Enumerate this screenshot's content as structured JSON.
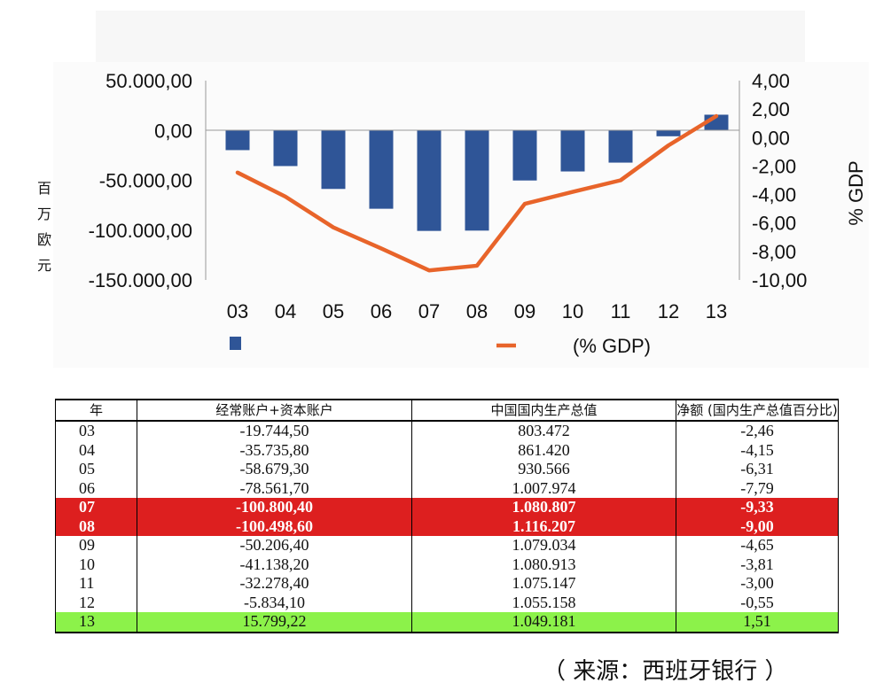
{
  "chart_data": {
    "type": "bar",
    "categories": [
      "03",
      "04",
      "05",
      "06",
      "07",
      "08",
      "09",
      "10",
      "11",
      "12",
      "13"
    ],
    "series": [
      {
        "axis": "left",
        "type": "bar",
        "values": [
          -19744.5,
          -35735.8,
          -58679.3,
          -78561.7,
          -100800.4,
          -100498.6,
          -50206.4,
          -41138.2,
          -32278.4,
          -5834.1,
          15799.22
        ],
        "color": "#2f5597"
      },
      {
        "axis": "right",
        "type": "line",
        "name": "(% GDP)",
        "values": [
          -2.46,
          -4.15,
          -6.31,
          -7.79,
          -9.33,
          -9.0,
          -4.65,
          -3.81,
          -3.0,
          -0.55,
          1.51
        ],
        "color": "#e8642a"
      }
    ],
    "y_left": {
      "label": [
        "百",
        "万",
        "欧",
        "元"
      ],
      "ylim": [
        -150000,
        50000
      ],
      "ticks": [
        50000,
        0,
        -50000,
        -100000,
        -150000
      ],
      "tick_labels": [
        "50.000,00",
        "0,00",
        "-50.000,00",
        "-100.000,00",
        "-150.000,00"
      ]
    },
    "y_right": {
      "label": "% GDP",
      "ylim": [
        -10,
        4
      ],
      "ticks": [
        4,
        2,
        0,
        -2,
        -4,
        -6,
        -8,
        -10
      ],
      "tick_labels": [
        "4,00",
        "2,00",
        "0,00",
        "-2,00",
        "-4,00",
        "-6,00",
        "-8,00",
        "-10,00"
      ]
    },
    "legend": {
      "placement": "bottom",
      "line_label": "(% GDP)"
    },
    "grid": false
  },
  "table": {
    "headers": [
      "年",
      "经常账户+资本账户",
      "中国国内生产总值",
      "净额 (国内生产总值百分比)"
    ],
    "rows": [
      {
        "cells": [
          "03",
          "-19.744,50",
          "803.472",
          "-2,46"
        ],
        "highlight": ""
      },
      {
        "cells": [
          "04",
          "-35.735,80",
          "861.420",
          "-4,15"
        ],
        "highlight": ""
      },
      {
        "cells": [
          "05",
          "-58.679,30",
          "930.566",
          "-6,31"
        ],
        "highlight": ""
      },
      {
        "cells": [
          "06",
          "-78.561,70",
          "1.007.974",
          "-7,79"
        ],
        "highlight": ""
      },
      {
        "cells": [
          "07",
          "-100.800,40",
          "1.080.807",
          "-9,33"
        ],
        "highlight": "red"
      },
      {
        "cells": [
          "08",
          "-100.498,60",
          "1.116.207",
          "-9,00"
        ],
        "highlight": "red"
      },
      {
        "cells": [
          "09",
          "-50.206,40",
          "1.079.034",
          "-4,65"
        ],
        "highlight": ""
      },
      {
        "cells": [
          "10",
          "-41.138,20",
          "1.080.913",
          "-3,81"
        ],
        "highlight": ""
      },
      {
        "cells": [
          "11",
          "-32.278,40",
          "1.075.147",
          "-3,00"
        ],
        "highlight": ""
      },
      {
        "cells": [
          "12",
          "-5.834,10",
          "1.055.158",
          "-0,55"
        ],
        "highlight": ""
      },
      {
        "cells": [
          "13",
          "15.799,22",
          "1.049.181",
          "1,51"
        ],
        "highlight": "green"
      }
    ]
  },
  "source_note": "（ 来源：西班牙银行 ）"
}
